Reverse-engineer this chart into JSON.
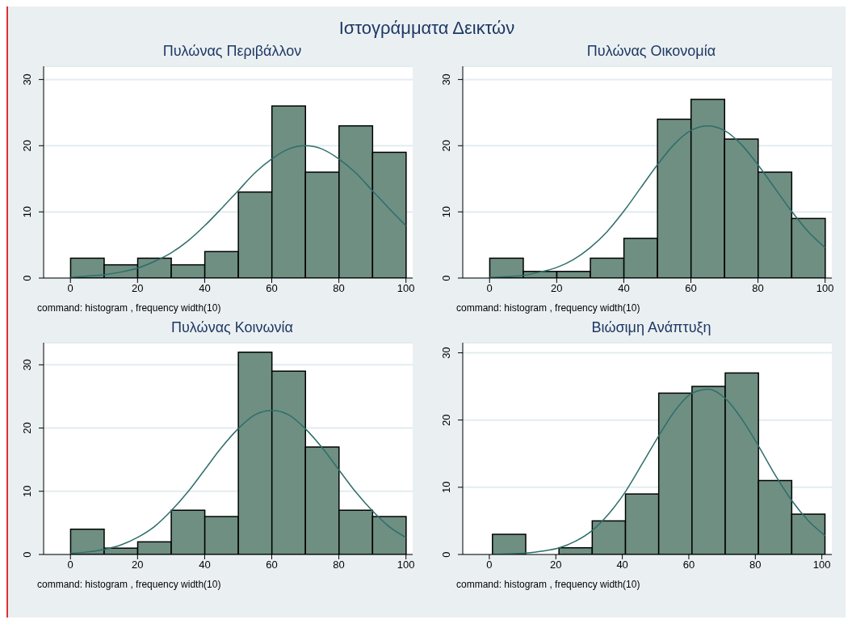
{
  "chart_data": [
    {
      "type": "other",
      "title": "Ιστογράμματα Δεικτών"
    },
    {
      "type": "histogram",
      "title": "Πυλώνας Περιβάλλον",
      "annotations": [
        "command: histogram , frequency width(10)"
      ],
      "xlim": [
        -8,
        102
      ],
      "xticks": [
        0,
        20,
        40,
        60,
        80,
        100
      ],
      "ylim": [
        0,
        32
      ],
      "yticks": [
        0,
        10,
        20,
        30
      ],
      "grid": "y",
      "series": [
        {
          "type": "histogram",
          "color": "#6e8f82",
          "bins": [
            0,
            10,
            20,
            30,
            40,
            50,
            60,
            70,
            80,
            90,
            100
          ],
          "values": [
            3,
            2,
            3,
            2,
            4,
            13,
            26,
            16,
            23,
            19
          ]
        },
        {
          "type": "line",
          "color": "#2e6e6a",
          "x": [
            0,
            5,
            10,
            15,
            20,
            25,
            30,
            35,
            40,
            45,
            50,
            55,
            60,
            65,
            70,
            75,
            80,
            85,
            90,
            95,
            100
          ],
          "values": [
            0.1,
            0.3,
            0.5,
            0.9,
            1.5,
            2.5,
            3.8,
            5.6,
            7.9,
            10.5,
            13.2,
            15.9,
            18,
            19.5,
            20,
            19.5,
            18,
            15.9,
            13.2,
            10.5,
            7.9
          ]
        }
      ]
    },
    {
      "type": "histogram",
      "title": "Πυλώνας Οικονομία",
      "annotations": [
        "command: histogram , frequency width(10)"
      ],
      "xlim": [
        -8,
        102
      ],
      "xticks": [
        0,
        20,
        40,
        60,
        80,
        100
      ],
      "ylim": [
        0,
        32
      ],
      "yticks": [
        0,
        10,
        20,
        30
      ],
      "grid": "y",
      "series": [
        {
          "type": "histogram",
          "color": "#6e8f82",
          "bins": [
            0,
            10,
            20,
            30,
            40,
            50,
            60,
            70,
            80,
            90,
            100
          ],
          "values": [
            3,
            1,
            1,
            3,
            6,
            24,
            27,
            21,
            16,
            9
          ]
        },
        {
          "type": "line",
          "color": "#2e6e6a",
          "x": [
            0,
            5,
            10,
            15,
            20,
            25,
            30,
            35,
            40,
            45,
            50,
            55,
            60,
            65,
            70,
            75,
            80,
            85,
            90,
            95,
            100
          ],
          "values": [
            0.1,
            0.2,
            0.4,
            0.9,
            1.6,
            2.8,
            4.6,
            7,
            10.1,
            13.6,
            17.1,
            20.2,
            22.3,
            23,
            22.3,
            20.2,
            17.1,
            13.6,
            10.1,
            7,
            4.6
          ]
        }
      ]
    },
    {
      "type": "histogram",
      "title": "Πυλώνας Κοινωνία",
      "annotations": [
        "command: histogram , frequency width(10)"
      ],
      "xlim": [
        -8,
        102
      ],
      "xticks": [
        0,
        20,
        40,
        60,
        80,
        100
      ],
      "ylim": [
        0,
        33.5
      ],
      "yticks": [
        0,
        10,
        20,
        30
      ],
      "grid": "y",
      "series": [
        {
          "type": "histogram",
          "color": "#6e8f82",
          "bins": [
            0,
            10,
            20,
            30,
            40,
            50,
            60,
            70,
            80,
            90,
            100
          ],
          "values": [
            4,
            1,
            2,
            7,
            6,
            32,
            29,
            17,
            7,
            6
          ]
        },
        {
          "type": "line",
          "color": "#2e6e6a",
          "x": [
            0,
            5,
            10,
            15,
            20,
            25,
            30,
            35,
            40,
            45,
            50,
            55,
            60,
            65,
            70,
            75,
            80,
            85,
            90,
            95,
            100
          ],
          "values": [
            0.2,
            0.4,
            0.8,
            1.5,
            2.7,
            4.4,
            6.9,
            9.9,
            13.4,
            16.9,
            19.9,
            22.1,
            22.8,
            22.1,
            19.9,
            16.9,
            13.4,
            9.9,
            6.9,
            4.4,
            2.7
          ]
        }
      ]
    },
    {
      "type": "histogram",
      "title": "Βιώσιμη Ανάπτυξη",
      "annotations": [
        "command: histogram , frequency width(10)"
      ],
      "xlim": [
        -8,
        103
      ],
      "xticks": [
        0,
        20,
        40,
        60,
        80,
        100
      ],
      "ylim": [
        0,
        31.5
      ],
      "yticks": [
        0,
        10,
        20,
        30
      ],
      "grid": "y",
      "series": [
        {
          "type": "histogram",
          "color": "#6e8f82",
          "bins": [
            1,
            11,
            21,
            31,
            41,
            51,
            61,
            71,
            81,
            91,
            101
          ],
          "values": [
            3,
            0,
            1,
            5,
            9,
            24,
            25,
            27,
            11,
            6
          ]
        },
        {
          "type": "line",
          "color": "#2e6e6a",
          "x": [
            1,
            6,
            11,
            16,
            21,
            26,
            31,
            36,
            41,
            46,
            51,
            56,
            61,
            66,
            71,
            76,
            81,
            86,
            91,
            96,
            101
          ],
          "values": [
            0,
            0.1,
            0.2,
            0.5,
            1,
            2,
            3.6,
            6.1,
            9.4,
            13.5,
            17.7,
            21.5,
            24,
            24.6,
            23.2,
            20.1,
            16.1,
            11.8,
            8,
            5,
            2.8
          ]
        }
      ]
    }
  ]
}
